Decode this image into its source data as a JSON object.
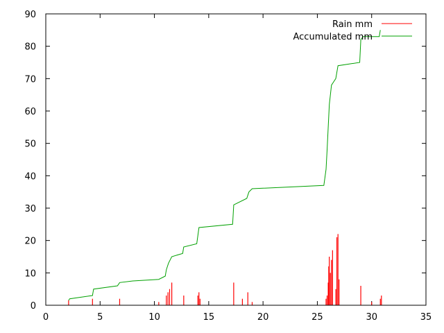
{
  "chart_data": {
    "type": "line",
    "title": "",
    "xlabel": "",
    "ylabel": "",
    "xlim": [
      0,
      35
    ],
    "ylim": [
      0,
      90
    ],
    "x_ticks": [
      0,
      5,
      10,
      15,
      20,
      25,
      30,
      35
    ],
    "y_ticks": [
      0,
      10,
      20,
      30,
      40,
      50,
      60,
      70,
      80,
      90
    ],
    "grid": false,
    "legend_position": "top-right",
    "series": [
      {
        "name": "Rain mm",
        "style": "impulses",
        "color": "#ff0000",
        "points": [
          [
            2.1,
            1.5
          ],
          [
            4.3,
            2.0
          ],
          [
            6.8,
            2.0
          ],
          [
            10.4,
            1.0
          ],
          [
            11.1,
            3.0
          ],
          [
            11.25,
            4.0
          ],
          [
            11.4,
            5.0
          ],
          [
            11.6,
            7.0
          ],
          [
            12.7,
            3.0
          ],
          [
            14.0,
            3.0
          ],
          [
            14.1,
            4.0
          ],
          [
            14.2,
            2.0
          ],
          [
            17.3,
            7.0
          ],
          [
            18.1,
            2.0
          ],
          [
            18.6,
            4.0
          ],
          [
            19.0,
            1.0
          ],
          [
            25.8,
            2.0
          ],
          [
            25.9,
            3.0
          ],
          [
            26.0,
            7.0
          ],
          [
            26.05,
            12.0
          ],
          [
            26.1,
            15.0
          ],
          [
            26.2,
            10.0
          ],
          [
            26.3,
            14.0
          ],
          [
            26.4,
            17.0
          ],
          [
            26.7,
            5.0
          ],
          [
            26.8,
            21.0
          ],
          [
            26.9,
            22.0
          ],
          [
            27.0,
            8.0
          ],
          [
            29.0,
            6.0
          ],
          [
            30.0,
            1.0
          ],
          [
            30.8,
            2.0
          ],
          [
            30.9,
            3.0
          ]
        ]
      },
      {
        "name": "Accumulated mm",
        "style": "lines",
        "color": "#00a000",
        "points": [
          [
            2.1,
            1.5
          ],
          [
            2.2,
            2.0
          ],
          [
            4.3,
            3.0
          ],
          [
            4.4,
            5.0
          ],
          [
            6.6,
            6.0
          ],
          [
            6.8,
            7.0
          ],
          [
            8.0,
            7.5
          ],
          [
            10.4,
            8.0
          ],
          [
            11.0,
            9.0
          ],
          [
            11.1,
            11.0
          ],
          [
            11.3,
            13.0
          ],
          [
            11.6,
            15.0
          ],
          [
            12.6,
            16.0
          ],
          [
            12.7,
            18.0
          ],
          [
            13.9,
            19.0
          ],
          [
            14.1,
            24.0
          ],
          [
            17.2,
            25.0
          ],
          [
            17.3,
            31.0
          ],
          [
            18.5,
            33.0
          ],
          [
            18.7,
            35.0
          ],
          [
            19.0,
            36.0
          ],
          [
            25.6,
            37.0
          ],
          [
            25.8,
            42.0
          ],
          [
            25.9,
            48.0
          ],
          [
            26.0,
            55.0
          ],
          [
            26.1,
            62.0
          ],
          [
            26.3,
            68.0
          ],
          [
            26.5,
            69.0
          ],
          [
            26.7,
            70.0
          ],
          [
            26.9,
            74.0
          ],
          [
            28.9,
            75.0
          ],
          [
            29.0,
            82.0
          ],
          [
            29.2,
            83.0
          ],
          [
            30.7,
            83.0
          ],
          [
            30.8,
            85.0
          ]
        ]
      }
    ]
  }
}
